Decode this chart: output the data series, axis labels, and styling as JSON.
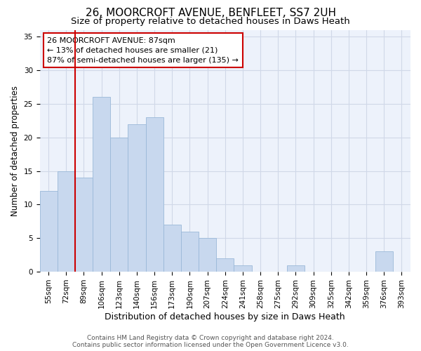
{
  "title": "26, MOORCROFT AVENUE, BENFLEET, SS7 2UH",
  "subtitle": "Size of property relative to detached houses in Daws Heath",
  "xlabel": "Distribution of detached houses by size in Daws Heath",
  "ylabel": "Number of detached properties",
  "footer_line1": "Contains HM Land Registry data © Crown copyright and database right 2024.",
  "footer_line2": "Contains public sector information licensed under the Open Government Licence v3.0.",
  "annotation_line1": "26 MOORCROFT AVENUE: 87sqm",
  "annotation_line2": "← 13% of detached houses are smaller (21)",
  "annotation_line3": "87% of semi-detached houses are larger (135) →",
  "bar_categories": [
    "55sqm",
    "72sqm",
    "89sqm",
    "106sqm",
    "123sqm",
    "140sqm",
    "156sqm",
    "173sqm",
    "190sqm",
    "207sqm",
    "224sqm",
    "241sqm",
    "258sqm",
    "275sqm",
    "292sqm",
    "309sqm",
    "325sqm",
    "342sqm",
    "359sqm",
    "376sqm",
    "393sqm"
  ],
  "bar_values": [
    12,
    15,
    14,
    26,
    20,
    22,
    23,
    7,
    6,
    5,
    2,
    1,
    0,
    0,
    1,
    0,
    0,
    0,
    0,
    3,
    0
  ],
  "bar_color": "#c8d8ee",
  "bar_edge_color": "#9ab8d8",
  "grid_color": "#d0d8e8",
  "bg_color": "#edf2fb",
  "vline_color": "#cc0000",
  "vline_x": 2.0,
  "ylim_max": 36,
  "yticks": [
    0,
    5,
    10,
    15,
    20,
    25,
    30,
    35
  ],
  "annotation_box_bg": "white",
  "annotation_box_edge": "#cc0000",
  "title_fontsize": 11,
  "subtitle_fontsize": 9.5,
  "ylabel_fontsize": 8.5,
  "xlabel_fontsize": 9,
  "tick_fontsize": 7.5,
  "annot_fontsize": 8,
  "footer_fontsize": 6.5
}
